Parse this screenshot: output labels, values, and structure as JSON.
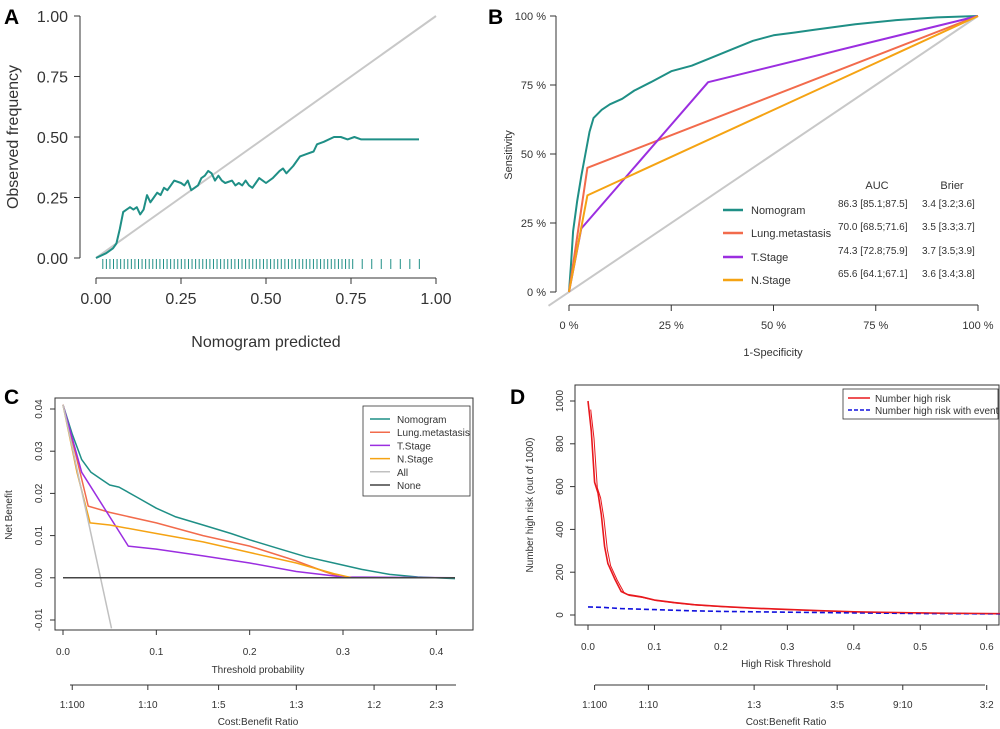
{
  "panels": [
    {
      "letter": "A",
      "chart_data": {
        "type": "line",
        "title": "",
        "xlabel": "Nomogram predicted",
        "ylabel": "Observed frequency",
        "xlim": [
          0,
          1
        ],
        "ylim": [
          0,
          1
        ],
        "x_ticks": [
          "0.00",
          "0.25",
          "0.50",
          "0.75",
          "1.00"
        ],
        "y_ticks": [
          "0.00",
          "0.25",
          "0.50",
          "0.75",
          "1.00"
        ],
        "series": [
          {
            "name": "Ideal",
            "color": "#c8c8c8",
            "points": [
              [
                0,
                0
              ],
              [
                1,
                1
              ]
            ]
          },
          {
            "name": "Observed",
            "color": "#1f8f86",
            "points": [
              [
                0.0,
                0.0
              ],
              [
                0.03,
                0.02
              ],
              [
                0.05,
                0.04
              ],
              [
                0.06,
                0.06
              ],
              [
                0.07,
                0.12
              ],
              [
                0.08,
                0.19
              ],
              [
                0.09,
                0.2
              ],
              [
                0.1,
                0.21
              ],
              [
                0.11,
                0.2
              ],
              [
                0.12,
                0.21
              ],
              [
                0.13,
                0.18
              ],
              [
                0.14,
                0.2
              ],
              [
                0.15,
                0.26
              ],
              [
                0.16,
                0.23
              ],
              [
                0.17,
                0.25
              ],
              [
                0.18,
                0.27
              ],
              [
                0.19,
                0.26
              ],
              [
                0.2,
                0.29
              ],
              [
                0.21,
                0.28
              ],
              [
                0.22,
                0.3
              ],
              [
                0.23,
                0.32
              ],
              [
                0.25,
                0.31
              ],
              [
                0.26,
                0.3
              ],
              [
                0.27,
                0.32
              ],
              [
                0.28,
                0.28
              ],
              [
                0.3,
                0.3
              ],
              [
                0.31,
                0.33
              ],
              [
                0.32,
                0.34
              ],
              [
                0.33,
                0.36
              ],
              [
                0.34,
                0.35
              ],
              [
                0.35,
                0.32
              ],
              [
                0.36,
                0.34
              ],
              [
                0.37,
                0.32
              ],
              [
                0.38,
                0.31
              ],
              [
                0.4,
                0.32
              ],
              [
                0.41,
                0.3
              ],
              [
                0.42,
                0.31
              ],
              [
                0.43,
                0.3
              ],
              [
                0.44,
                0.32
              ],
              [
                0.45,
                0.3
              ],
              [
                0.46,
                0.29
              ],
              [
                0.47,
                0.31
              ],
              [
                0.48,
                0.33
              ],
              [
                0.5,
                0.31
              ],
              [
                0.52,
                0.33
              ],
              [
                0.54,
                0.36
              ],
              [
                0.55,
                0.37
              ],
              [
                0.56,
                0.35
              ],
              [
                0.58,
                0.38
              ],
              [
                0.6,
                0.42
              ],
              [
                0.62,
                0.43
              ],
              [
                0.64,
                0.44
              ],
              [
                0.65,
                0.47
              ],
              [
                0.67,
                0.48
              ],
              [
                0.7,
                0.5
              ],
              [
                0.72,
                0.5
              ],
              [
                0.74,
                0.49
              ],
              [
                0.76,
                0.5
              ],
              [
                0.78,
                0.49
              ],
              [
                0.8,
                0.49
              ],
              [
                0.85,
                0.49
              ],
              [
                0.9,
                0.49
              ],
              [
                0.95,
                0.49
              ]
            ]
          }
        ],
        "rug": "tick marks along the x-axis at predicted values 0.02–0.95"
      }
    },
    {
      "letter": "B",
      "chart_data": {
        "type": "line",
        "title": "",
        "xlabel": "1-Specificity",
        "ylabel": "Sensitivity",
        "xlim": [
          0,
          1
        ],
        "ylim": [
          0,
          1
        ],
        "x_ticks": [
          "0 %",
          "25 %",
          "50 %",
          "75 %",
          "100 %"
        ],
        "y_ticks": [
          "0 %",
          "25 %",
          "50 %",
          "75 %",
          "100 %"
        ],
        "table_headers": [
          "AUC",
          "Brier"
        ],
        "series": [
          {
            "name": "Nomogram",
            "color": "#1f8f86",
            "auc": "86.3 [85.1;87.5]",
            "brier": "3.4 [3.2;3.6]",
            "points": [
              [
                0,
                0
              ],
              [
                0.005,
                0.1
              ],
              [
                0.01,
                0.22
              ],
              [
                0.02,
                0.33
              ],
              [
                0.03,
                0.42
              ],
              [
                0.04,
                0.5
              ],
              [
                0.05,
                0.58
              ],
              [
                0.06,
                0.63
              ],
              [
                0.08,
                0.66
              ],
              [
                0.1,
                0.68
              ],
              [
                0.13,
                0.7
              ],
              [
                0.16,
                0.73
              ],
              [
                0.2,
                0.76
              ],
              [
                0.25,
                0.8
              ],
              [
                0.3,
                0.82
              ],
              [
                0.35,
                0.85
              ],
              [
                0.4,
                0.88
              ],
              [
                0.45,
                0.91
              ],
              [
                0.5,
                0.93
              ],
              [
                0.55,
                0.94
              ],
              [
                0.6,
                0.95
              ],
              [
                0.7,
                0.97
              ],
              [
                0.8,
                0.985
              ],
              [
                0.9,
                0.995
              ],
              [
                1,
                1
              ]
            ]
          },
          {
            "name": "Lung.metastasis",
            "color": "#f26b4c",
            "auc": "70.0 [68.5;71.6]",
            "brier": "3.5 [3.3;3.7]",
            "points": [
              [
                0,
                0
              ],
              [
                0.045,
                0.45
              ],
              [
                1,
                1
              ]
            ]
          },
          {
            "name": "T.Stage",
            "color": "#9b2ee0",
            "auc": "74.3 [72.8;75.9]",
            "brier": "3.7 [3.5;3.9]",
            "points": [
              [
                0,
                0
              ],
              [
                0.03,
                0.23
              ],
              [
                0.34,
                0.76
              ],
              [
                1,
                1
              ]
            ]
          },
          {
            "name": "N.Stage",
            "color": "#f5a313",
            "auc": "65.6 [64.1;67.1]",
            "brier": "3.6 [3.4;3.8]",
            "points": [
              [
                0,
                0
              ],
              [
                0.045,
                0.35
              ],
              [
                1,
                1
              ]
            ]
          },
          {
            "name": "Reference",
            "color": "#c8c8c8",
            "points": [
              [
                -0.05,
                -0.05
              ],
              [
                1,
                1
              ]
            ]
          }
        ]
      }
    },
    {
      "letter": "C",
      "chart_data": {
        "type": "line",
        "title": "",
        "xlabel": "Threshold probability",
        "ylabel": "Net Benefit",
        "xlim": [
          0,
          0.42
        ],
        "ylim": [
          -0.01,
          0.04
        ],
        "x_ticks": [
          "0.0",
          "0.1",
          "0.2",
          "0.3",
          "0.4"
        ],
        "y_ticks": [
          "-0.01",
          "0.00",
          "0.01",
          "0.02",
          "0.03",
          "0.04"
        ],
        "secondary_xlabel": "Cost:Benefit Ratio",
        "secondary_ticks": [
          "1:100",
          "1:10",
          "1:5",
          "1:3",
          "1:2",
          "2:3"
        ],
        "series": [
          {
            "name": "Nomogram",
            "color": "#1f8f86",
            "points": [
              [
                0,
                0.041
              ],
              [
                0.01,
                0.034
              ],
              [
                0.02,
                0.028
              ],
              [
                0.03,
                0.025
              ],
              [
                0.04,
                0.0235
              ],
              [
                0.05,
                0.022
              ],
              [
                0.06,
                0.0215
              ],
              [
                0.08,
                0.019
              ],
              [
                0.1,
                0.0165
              ],
              [
                0.12,
                0.0145
              ],
              [
                0.15,
                0.0125
              ],
              [
                0.18,
                0.0105
              ],
              [
                0.2,
                0.009
              ],
              [
                0.23,
                0.007
              ],
              [
                0.26,
                0.005
              ],
              [
                0.29,
                0.0035
              ],
              [
                0.32,
                0.002
              ],
              [
                0.35,
                0.0008
              ],
              [
                0.38,
                0.0002
              ],
              [
                0.42,
                -0.0002
              ]
            ]
          },
          {
            "name": "Lung.metastasis",
            "color": "#f26b4c",
            "points": [
              [
                0,
                0.041
              ],
              [
                0.015,
                0.028
              ],
              [
                0.027,
                0.017
              ],
              [
                0.05,
                0.0155
              ],
              [
                0.1,
                0.013
              ],
              [
                0.15,
                0.01
              ],
              [
                0.2,
                0.0075
              ],
              [
                0.25,
                0.004
              ],
              [
                0.28,
                0.0015
              ],
              [
                0.3,
                0.0
              ],
              [
                0.42,
                0.0
              ]
            ]
          },
          {
            "name": "T.Stage",
            "color": "#9b2ee0",
            "points": [
              [
                0,
                0.041
              ],
              [
                0.02,
                0.025
              ],
              [
                0.04,
                0.018
              ],
              [
                0.07,
                0.0075
              ],
              [
                0.1,
                0.0068
              ],
              [
                0.15,
                0.0052
              ],
              [
                0.2,
                0.0035
              ],
              [
                0.25,
                0.0015
              ],
              [
                0.3,
                0.0002
              ],
              [
                0.42,
                0.0
              ]
            ]
          },
          {
            "name": "N.Stage",
            "color": "#f5a313",
            "points": [
              [
                0,
                0.041
              ],
              [
                0.015,
                0.025
              ],
              [
                0.029,
                0.013
              ],
              [
                0.05,
                0.0125
              ],
              [
                0.1,
                0.0105
              ],
              [
                0.15,
                0.0085
              ],
              [
                0.2,
                0.006
              ],
              [
                0.25,
                0.0035
              ],
              [
                0.29,
                0.001
              ],
              [
                0.31,
                0.0
              ],
              [
                0.42,
                0.0
              ]
            ]
          },
          {
            "name": "All",
            "color": "#c0c0c0",
            "points": [
              [
                0,
                0.041
              ],
              [
                0.052,
                -0.012
              ]
            ]
          },
          {
            "name": "None",
            "color": "#444444",
            "points": [
              [
                0,
                0
              ],
              [
                0.42,
                0
              ]
            ]
          }
        ]
      }
    },
    {
      "letter": "D",
      "chart_data": {
        "type": "line",
        "title": "",
        "xlabel": "High Risk Threshold",
        "ylabel": "Number high risk (out of 1000)",
        "xlim": [
          0,
          0.62
        ],
        "ylim": [
          0,
          1000
        ],
        "x_ticks": [
          "0.0",
          "0.1",
          "0.2",
          "0.3",
          "0.4",
          "0.5",
          "0.6"
        ],
        "y_ticks": [
          "0",
          "200",
          "400",
          "600",
          "800",
          "1000"
        ],
        "secondary_xlabel": "Cost:Benefit Ratio",
        "secondary_ticks": [
          "1:100",
          "1:10",
          "1:3",
          "3:5",
          "9:10",
          "3:2"
        ],
        "series": [
          {
            "name": "Number high risk",
            "color": "#e8181d",
            "points": [
              [
                0,
                1000
              ],
              [
                0.005,
                860
              ],
              [
                0.01,
                620
              ],
              [
                0.015,
                570
              ],
              [
                0.02,
                470
              ],
              [
                0.025,
                320
              ],
              [
                0.03,
                240
              ],
              [
                0.04,
                170
              ],
              [
                0.05,
                110
              ],
              [
                0.06,
                95
              ],
              [
                0.08,
                85
              ],
              [
                0.1,
                70
              ],
              [
                0.13,
                58
              ],
              [
                0.16,
                48
              ],
              [
                0.2,
                40
              ],
              [
                0.25,
                32
              ],
              [
                0.3,
                26
              ],
              [
                0.35,
                20
              ],
              [
                0.4,
                15
              ],
              [
                0.45,
                12
              ],
              [
                0.5,
                10
              ],
              [
                0.55,
                8
              ],
              [
                0.62,
                6
              ]
            ]
          },
          {
            "name": "Number high risk with event",
            "color": "#1010dd",
            "dashed": true,
            "points": [
              [
                0,
                38
              ],
              [
                0.02,
                36
              ],
              [
                0.05,
                30
              ],
              [
                0.1,
                25
              ],
              [
                0.15,
                20
              ],
              [
                0.2,
                17
              ],
              [
                0.3,
                13
              ],
              [
                0.4,
                10
              ],
              [
                0.5,
                7
              ],
              [
                0.62,
                5
              ]
            ]
          }
        ]
      }
    }
  ]
}
